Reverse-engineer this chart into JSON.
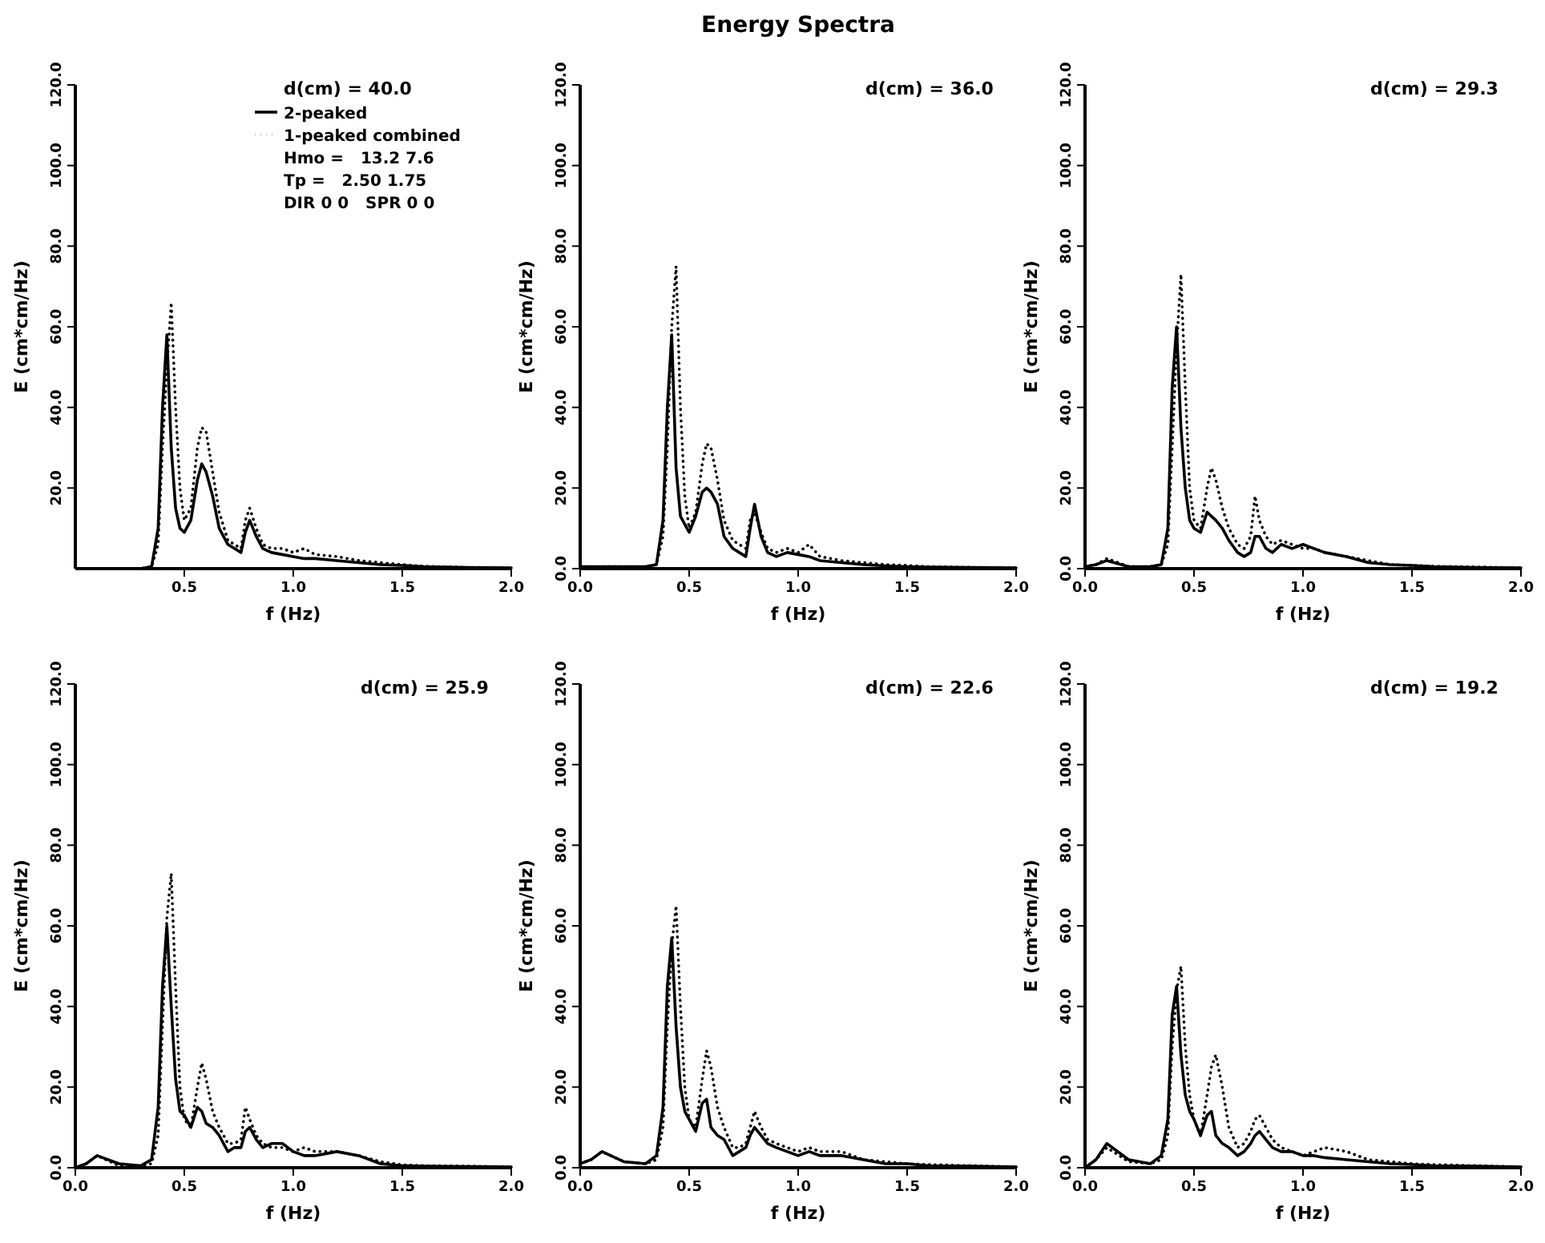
{
  "chart_data": [
    {
      "type": "line",
      "ylabel": "E (cm*cm/Hz)",
      "xlabel": "f (Hz)",
      "xlim": [
        0,
        2
      ],
      "ylim": [
        0,
        120
      ],
      "xticks": [
        {
          "value": 0.5,
          "label": "0.5"
        },
        {
          "value": 1,
          "label": "1.0"
        },
        {
          "value": 1.5,
          "label": "1.5"
        },
        {
          "value": 2,
          "label": "2.0"
        }
      ],
      "yticks": [
        {
          "value": 20,
          "label": "20.0"
        },
        {
          "value": 40,
          "label": "40.0"
        },
        {
          "value": 60,
          "label": "60.0"
        },
        {
          "value": 80,
          "label": "80.0"
        },
        {
          "value": 100,
          "label": "100.0"
        },
        {
          "value": 120,
          "label": "120.0"
        }
      ],
      "legend": "top right",
      "annotations": [
        "d(cm) = 40.0",
        "Hmo =   13.2 7.6",
        "Tp =   2.50 1.75",
        "DIR 0 0   SPR 0 0"
      ],
      "x": [
        0.1,
        0.2,
        0.3,
        0.35,
        0.38,
        0.4,
        0.42,
        0.44,
        0.46,
        0.48,
        0.5,
        0.53,
        0.56,
        0.58,
        0.6,
        0.63,
        0.66,
        0.7,
        0.73,
        0.76,
        0.78,
        0.8,
        0.83,
        0.86,
        0.9,
        0.95,
        1.0,
        1.05,
        1.1,
        1.2,
        1.3,
        1.4,
        1.5,
        1.6,
        1.8,
        2.0
      ],
      "series": [
        {
          "name": "2-peaked",
          "color": "#000000",
          "line_style": "solid",
          "values": [
            0,
            0,
            0,
            0.5,
            10,
            40,
            58,
            30,
            15,
            10,
            9,
            12,
            22,
            26,
            24,
            18,
            10,
            6,
            5,
            4,
            9,
            12,
            8,
            5,
            4,
            3.5,
            3,
            2.5,
            2.5,
            2,
            1.5,
            1,
            0.8,
            0.5,
            0.3,
            0.2
          ]
        },
        {
          "name": "1-peaked combined",
          "color": "#000000",
          "line_style": "dotted",
          "values": [
            0,
            0,
            0,
            0.5,
            6,
            30,
            50,
            66,
            40,
            20,
            12,
            15,
            30,
            35,
            34,
            24,
            14,
            7,
            6,
            5,
            12,
            15,
            10,
            6,
            5,
            5,
            4,
            5,
            3.5,
            3,
            2,
            1.5,
            1,
            0.6,
            0.3,
            0.2
          ]
        }
      ]
    },
    {
      "type": "line",
      "title": "Energy Spectra",
      "ylabel": "E (cm*cm/Hz)",
      "xlabel": "f (Hz)",
      "xlim": [
        0,
        2
      ],
      "ylim": [
        0,
        120
      ],
      "xticks": [
        {
          "value": 0,
          "label": "0.0"
        },
        {
          "value": 0.5,
          "label": "0.5"
        },
        {
          "value": 1,
          "label": "1.0"
        },
        {
          "value": 1.5,
          "label": "1.5"
        },
        {
          "value": 2,
          "label": "2.0"
        }
      ],
      "yticks": [
        {
          "value": 0,
          "label": "0.0"
        },
        {
          "value": 20,
          "label": "20.0"
        },
        {
          "value": 40,
          "label": "40.0"
        },
        {
          "value": 60,
          "label": "60.0"
        },
        {
          "value": 80,
          "label": "80.0"
        },
        {
          "value": 100,
          "label": "100.0"
        },
        {
          "value": 120,
          "label": "120.0"
        }
      ],
      "annotations": [
        "d(cm) = 36.0"
      ],
      "x": [
        0,
        0.05,
        0.1,
        0.2,
        0.3,
        0.35,
        0.38,
        0.4,
        0.42,
        0.44,
        0.46,
        0.48,
        0.5,
        0.53,
        0.56,
        0.58,
        0.6,
        0.63,
        0.66,
        0.7,
        0.73,
        0.76,
        0.78,
        0.8,
        0.83,
        0.86,
        0.9,
        0.95,
        1.0,
        1.05,
        1.1,
        1.2,
        1.3,
        1.4,
        1.5,
        1.6,
        1.8,
        2.0
      ],
      "series": [
        {
          "color": "#000000",
          "line_style": "solid",
          "values": [
            0.5,
            0.5,
            0.5,
            0.5,
            0.5,
            1,
            12,
            40,
            58,
            25,
            13,
            11,
            9,
            13,
            19,
            20,
            19,
            16,
            8,
            5,
            4,
            3,
            10,
            16,
            8,
            4,
            3,
            4,
            3.5,
            3,
            2,
            1.5,
            1,
            0.7,
            0.5,
            0.4,
            0.3,
            0.2
          ]
        },
        {
          "color": "#000000",
          "line_style": "dotted",
          "values": [
            0.5,
            0.5,
            0.5,
            0.5,
            0.5,
            1,
            8,
            30,
            60,
            75,
            40,
            18,
            10,
            14,
            26,
            31,
            30,
            22,
            12,
            7,
            6,
            5,
            12,
            14,
            9,
            5,
            4,
            5,
            4,
            6,
            3,
            2,
            1.5,
            1,
            0.8,
            0.5,
            0.3,
            0.2
          ]
        }
      ]
    },
    {
      "type": "line",
      "ylabel": "E (cm*cm/Hz)",
      "xlabel": "f (Hz)",
      "xlim": [
        0,
        2
      ],
      "ylim": [
        0,
        120
      ],
      "xticks": [
        {
          "value": 0,
          "label": "0.0"
        },
        {
          "value": 0.5,
          "label": "0.5"
        },
        {
          "value": 1,
          "label": "1.0"
        },
        {
          "value": 1.5,
          "label": "1.5"
        },
        {
          "value": 2,
          "label": "2.0"
        }
      ],
      "yticks": [
        {
          "value": 0,
          "label": "0.0"
        },
        {
          "value": 20,
          "label": "20.0"
        },
        {
          "value": 40,
          "label": "40.0"
        },
        {
          "value": 60,
          "label": "60.0"
        },
        {
          "value": 80,
          "label": "80.0"
        },
        {
          "value": 100,
          "label": "100.0"
        },
        {
          "value": 120,
          "label": "120.0"
        }
      ],
      "annotations": [
        "d(cm) = 29.3"
      ],
      "x": [
        0,
        0.05,
        0.1,
        0.2,
        0.3,
        0.35,
        0.38,
        0.4,
        0.42,
        0.44,
        0.46,
        0.48,
        0.5,
        0.53,
        0.56,
        0.58,
        0.6,
        0.63,
        0.66,
        0.7,
        0.73,
        0.76,
        0.78,
        0.8,
        0.83,
        0.86,
        0.9,
        0.95,
        1.0,
        1.05,
        1.1,
        1.2,
        1.3,
        1.4,
        1.5,
        1.6,
        1.8,
        2.0
      ],
      "series": [
        {
          "color": "#000000",
          "line_style": "solid",
          "values": [
            0.5,
            1,
            2,
            0.5,
            0.5,
            1,
            10,
            45,
            60,
            35,
            20,
            12,
            10,
            9,
            14,
            13,
            12,
            10,
            7,
            4,
            3,
            4,
            8,
            8,
            5,
            4,
            6,
            5,
            6,
            5,
            4,
            3,
            1.5,
            1,
            0.8,
            0.5,
            0.3,
            0.2
          ]
        },
        {
          "color": "#000000",
          "line_style": "dotted",
          "values": [
            0.5,
            1,
            2.5,
            0.5,
            0.5,
            1,
            6,
            30,
            55,
            73,
            45,
            20,
            12,
            10,
            20,
            25,
            22,
            15,
            10,
            6,
            5,
            8,
            18,
            12,
            8,
            6,
            7,
            6,
            5,
            5,
            4,
            3,
            2,
            1,
            0.8,
            0.6,
            0.4,
            0.2
          ]
        }
      ]
    },
    {
      "type": "line",
      "ylabel": "E (cm*cm/Hz)",
      "xlabel": "f (Hz)",
      "xlim": [
        0,
        2
      ],
      "ylim": [
        0,
        120
      ],
      "xticks": [
        {
          "value": 0,
          "label": "0.0"
        },
        {
          "value": 0.5,
          "label": "0.5"
        },
        {
          "value": 1,
          "label": "1.0"
        },
        {
          "value": 1.5,
          "label": "1.5"
        },
        {
          "value": 2,
          "label": "2.0"
        }
      ],
      "yticks": [
        {
          "value": 0,
          "label": "0.0"
        },
        {
          "value": 20,
          "label": "20.0"
        },
        {
          "value": 40,
          "label": "40.0"
        },
        {
          "value": 60,
          "label": "60.0"
        },
        {
          "value": 80,
          "label": "80.0"
        },
        {
          "value": 100,
          "label": "100.0"
        },
        {
          "value": 120,
          "label": "120.0"
        }
      ],
      "annotations": [
        "d(cm) = 25.9"
      ],
      "x": [
        0,
        0.05,
        0.1,
        0.2,
        0.3,
        0.35,
        0.38,
        0.4,
        0.42,
        0.44,
        0.46,
        0.48,
        0.5,
        0.53,
        0.56,
        0.58,
        0.6,
        0.63,
        0.66,
        0.7,
        0.73,
        0.76,
        0.78,
        0.8,
        0.83,
        0.86,
        0.9,
        0.95,
        1.0,
        1.05,
        1.1,
        1.2,
        1.3,
        1.4,
        1.5,
        1.6,
        1.8,
        2.0
      ],
      "series": [
        {
          "color": "#000000",
          "line_style": "solid",
          "values": [
            0,
            1,
            3,
            1,
            0.5,
            2,
            15,
            45,
            60,
            40,
            22,
            14,
            13,
            10,
            15,
            14,
            11,
            10,
            8,
            4,
            5,
            5,
            9,
            10,
            7,
            5,
            6,
            6,
            4,
            3,
            3,
            4,
            3,
            1,
            0.5,
            0.4,
            0.3,
            0.2
          ]
        },
        {
          "color": "#000000",
          "line_style": "dotted",
          "values": [
            0,
            1,
            3,
            0.5,
            0.5,
            1,
            8,
            35,
            62,
            73,
            45,
            20,
            12,
            10,
            20,
            26,
            22,
            14,
            10,
            6,
            6,
            7,
            15,
            12,
            8,
            6,
            5,
            5,
            4,
            5,
            4,
            4,
            3,
            1.5,
            0.7,
            0.5,
            0.4,
            0.2
          ]
        }
      ]
    },
    {
      "type": "line",
      "ylabel": "E (cm*cm/Hz)",
      "xlabel": "f (Hz)",
      "xlim": [
        0,
        2
      ],
      "ylim": [
        0,
        120
      ],
      "xticks": [
        {
          "value": 0,
          "label": "0.0"
        },
        {
          "value": 0.5,
          "label": "0.5"
        },
        {
          "value": 1,
          "label": "1.0"
        },
        {
          "value": 1.5,
          "label": "1.5"
        },
        {
          "value": 2,
          "label": "2.0"
        }
      ],
      "yticks": [
        {
          "value": 0,
          "label": "0.0"
        },
        {
          "value": 20,
          "label": "20.0"
        },
        {
          "value": 40,
          "label": "40.0"
        },
        {
          "value": 60,
          "label": "60.0"
        },
        {
          "value": 80,
          "label": "80.0"
        },
        {
          "value": 100,
          "label": "100.0"
        },
        {
          "value": 120,
          "label": "120.0"
        }
      ],
      "annotations": [
        "d(cm) = 22.6"
      ],
      "x": [
        0,
        0.05,
        0.1,
        0.2,
        0.3,
        0.35,
        0.38,
        0.4,
        0.42,
        0.44,
        0.46,
        0.48,
        0.5,
        0.53,
        0.56,
        0.58,
        0.6,
        0.63,
        0.66,
        0.7,
        0.73,
        0.76,
        0.78,
        0.8,
        0.83,
        0.86,
        0.9,
        0.95,
        1.0,
        1.05,
        1.1,
        1.2,
        1.3,
        1.4,
        1.5,
        1.6,
        1.8,
        2.0
      ],
      "series": [
        {
          "color": "#000000",
          "line_style": "solid",
          "values": [
            1,
            2,
            4,
            1.5,
            1,
            3,
            15,
            45,
            57,
            35,
            20,
            14,
            12,
            9,
            16,
            17,
            10,
            8,
            7,
            3,
            4,
            5,
            8,
            10,
            8,
            6,
            5,
            4,
            3,
            4,
            3,
            3,
            2,
            1,
            1,
            0.5,
            0.4,
            0.2
          ]
        },
        {
          "color": "#000000",
          "line_style": "dotted",
          "values": [
            1,
            2,
            4,
            1.5,
            1,
            2,
            10,
            35,
            55,
            65,
            40,
            20,
            12,
            10,
            22,
            29,
            25,
            15,
            10,
            5,
            5,
            6,
            10,
            14,
            10,
            7,
            6,
            5,
            4,
            5,
            4,
            4,
            2,
            1.5,
            1,
            0.8,
            0.5,
            0.2
          ]
        }
      ]
    },
    {
      "type": "line",
      "ylabel": "E (cm*cm/Hz)",
      "xlabel": "f (Hz)",
      "xlim": [
        0,
        2
      ],
      "ylim": [
        0,
        120
      ],
      "xticks": [
        {
          "value": 0,
          "label": "0.0"
        },
        {
          "value": 0.5,
          "label": "0.5"
        },
        {
          "value": 1,
          "label": "1.0"
        },
        {
          "value": 1.5,
          "label": "1.5"
        },
        {
          "value": 2,
          "label": "2.0"
        }
      ],
      "yticks": [
        {
          "value": 0,
          "label": "0.0"
        },
        {
          "value": 20,
          "label": "20.0"
        },
        {
          "value": 40,
          "label": "40.0"
        },
        {
          "value": 60,
          "label": "60.0"
        },
        {
          "value": 80,
          "label": "80.0"
        },
        {
          "value": 100,
          "label": "100.0"
        },
        {
          "value": 120,
          "label": "120.0"
        }
      ],
      "annotations": [
        "d(cm) = 19.2"
      ],
      "x": [
        0,
        0.05,
        0.1,
        0.2,
        0.3,
        0.35,
        0.38,
        0.4,
        0.42,
        0.44,
        0.46,
        0.48,
        0.5,
        0.53,
        0.56,
        0.58,
        0.6,
        0.63,
        0.66,
        0.7,
        0.73,
        0.76,
        0.78,
        0.8,
        0.83,
        0.86,
        0.9,
        0.95,
        1.0,
        1.05,
        1.1,
        1.2,
        1.3,
        1.4,
        1.5,
        1.6,
        1.8,
        2.0
      ],
      "series": [
        {
          "color": "#000000",
          "line_style": "solid",
          "values": [
            0,
            2,
            6,
            2,
            1,
            3,
            12,
            38,
            45,
            28,
            18,
            14,
            12,
            8,
            13,
            14,
            8,
            6,
            5,
            3,
            4,
            6,
            8,
            9,
            7,
            5,
            4,
            4,
            3,
            3,
            2.5,
            2,
            1.5,
            1,
            0.8,
            0.5,
            0.4,
            0.2
          ]
        },
        {
          "color": "#000000",
          "line_style": "dotted",
          "values": [
            0,
            2,
            5,
            1.5,
            1,
            2,
            8,
            30,
            44,
            50,
            30,
            18,
            12,
            8,
            18,
            25,
            28,
            20,
            10,
            5,
            6,
            9,
            12,
            13,
            10,
            7,
            5,
            4,
            3,
            4,
            5,
            4,
            2,
            1.5,
            1,
            0.8,
            0.5,
            0.2
          ]
        }
      ]
    }
  ]
}
